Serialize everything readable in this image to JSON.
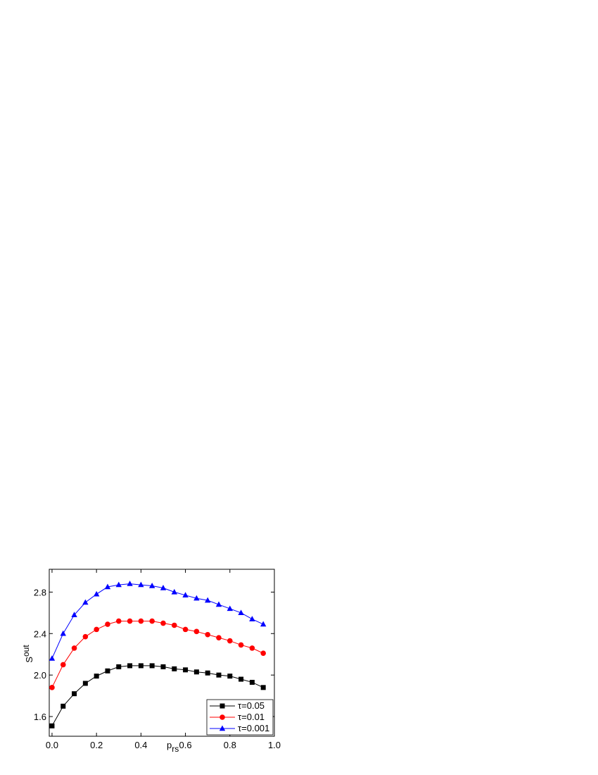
{
  "chart_data": {
    "type": "line",
    "xlabel": {
      "main": "p",
      "sub": "rs"
    },
    "ylabel": {
      "main": "S",
      "sub": "out"
    },
    "x": [
      0,
      0.05,
      0.1,
      0.15,
      0.2,
      0.25,
      0.3,
      0.35,
      0.4,
      0.45,
      0.5,
      0.55,
      0.6,
      0.65,
      0.7,
      0.75,
      0.8,
      0.85,
      0.9,
      0.95
    ],
    "series": [
      {
        "name": "τ=0.05",
        "color": "#000000",
        "marker": "square",
        "values": [
          1.51,
          1.7,
          1.82,
          1.92,
          1.99,
          2.04,
          2.08,
          2.09,
          2.09,
          2.09,
          2.08,
          2.06,
          2.05,
          2.03,
          2.02,
          2.0,
          1.99,
          1.96,
          1.93,
          1.88
        ]
      },
      {
        "name": "τ=0.01",
        "color": "#ff0000",
        "marker": "circle",
        "values": [
          1.88,
          2.1,
          2.26,
          2.37,
          2.44,
          2.49,
          2.52,
          2.52,
          2.52,
          2.52,
          2.5,
          2.48,
          2.44,
          2.42,
          2.39,
          2.36,
          2.33,
          2.29,
          2.26,
          2.21
        ]
      },
      {
        "name": "τ=0.001",
        "color": "#0000ff",
        "marker": "triangle",
        "values": [
          2.16,
          2.4,
          2.58,
          2.7,
          2.78,
          2.85,
          2.87,
          2.88,
          2.87,
          2.86,
          2.84,
          2.8,
          2.77,
          2.74,
          2.72,
          2.68,
          2.64,
          2.6,
          2.54,
          2.49
        ]
      }
    ],
    "xlim": [
      -0.0125,
      1.0
    ],
    "xticks": [
      {
        "value": 0,
        "label": "0.0"
      },
      0.2,
      0.4,
      0.6,
      0.8,
      {
        "value": 1,
        "label": "1.0"
      }
    ],
    "ylim": [
      1.41,
      3.02
    ],
    "yticks": [
      1.6,
      {
        "value": 2,
        "label": "2.0"
      },
      2.4,
      2.8
    ],
    "legend": "lower right",
    "grid": false
  }
}
